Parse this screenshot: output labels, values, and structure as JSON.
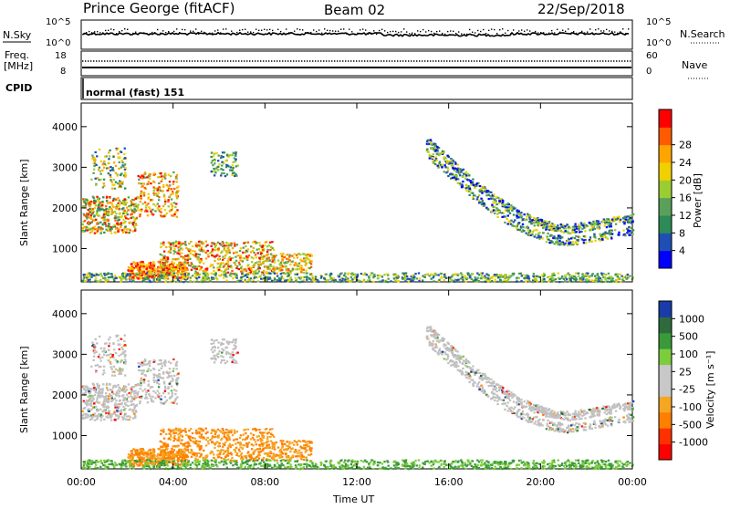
{
  "header": {
    "station": "Prince George (fitACF)",
    "beam": "Beam 02",
    "date": "22/Sep/2018"
  },
  "sky_panel": {
    "left_label": "N.Sky",
    "left_ticks": [
      "10^5",
      "10^0"
    ],
    "right_label": "N.Search",
    "right_ticks": [
      "10^5",
      "10^0"
    ]
  },
  "freq_panel": {
    "left_label_top": "Freq.",
    "left_label_unit": "[MHz]",
    "left_ticks": [
      "18",
      "8"
    ],
    "right_label": "Nave",
    "right_ticks": [
      "60",
      "0"
    ]
  },
  "cpid": {
    "label": "CPID",
    "value": "normal (fast) 151"
  },
  "colors": {
    "power": [
      "#0000ff",
      "#1f4fb4",
      "#2e8b57",
      "#5aa05a",
      "#9acd32",
      "#f0d000",
      "#ffa500",
      "#ff5a00",
      "#ff0000"
    ],
    "velocity": [
      "#1a3ca8",
      "#2e6b3c",
      "#3a9a3a",
      "#7ccd3c",
      "#c8c8c8",
      "#c8c8c8",
      "#f5a623",
      "#ff7f00",
      "#ff3000",
      "#ff0000"
    ],
    "gs": "#c0c0c0"
  },
  "chart_data": [
    {
      "type": "heatmap",
      "name": "power",
      "ylabel": "Slant Range [km]",
      "yticks": [
        "1000",
        "2000",
        "3000",
        "4000"
      ],
      "ylim": [
        180,
        4580
      ],
      "xlim": [
        0,
        24
      ],
      "colorbar_label": "Power [dB]",
      "colorbar_ticks": [
        "4",
        "8",
        "12",
        "16",
        "20",
        "24",
        "28"
      ]
    },
    {
      "type": "heatmap",
      "name": "velocity",
      "ylabel": "Slant Range [km]",
      "yticks": [
        "1000",
        "2000",
        "3000",
        "4000"
      ],
      "ylim": [
        180,
        4580
      ],
      "xlim": [
        0,
        24
      ],
      "colorbar_label": "Velocity [m s⁻¹]",
      "colorbar_ticks": [
        "1000",
        "500",
        "100",
        "25",
        "-25",
        "-100",
        "-500",
        "-1000"
      ]
    }
  ],
  "xaxis": {
    "ticks": [
      "00:00",
      "04:00",
      "08:00",
      "12:00",
      "16:00",
      "20:00",
      "00:00"
    ],
    "label": "Time UT"
  }
}
